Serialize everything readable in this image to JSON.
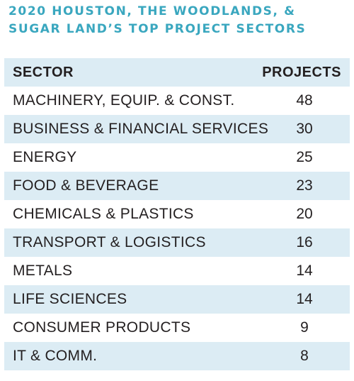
{
  "title_line1": "2020 HOUSTON, THE WOODLANDS, &",
  "title_line2": "SUGAR LAND’S TOP PROJECT SECTORS",
  "colors": {
    "title": "#3aa7bf",
    "row_shade": "#dcecf4",
    "text": "#231f20"
  },
  "chart_data": {
    "type": "table",
    "title": "2020 HOUSTON, THE WOODLANDS, & SUGAR LAND’S TOP PROJECT SECTORS",
    "columns": [
      "SECTOR",
      "PROJECTS"
    ],
    "rows": [
      {
        "sector": "MACHINERY, EQUIP. & CONST.",
        "projects": 48
      },
      {
        "sector": "BUSINESS & FINANCIAL SERVICES",
        "projects": 30
      },
      {
        "sector": "ENERGY",
        "projects": 25
      },
      {
        "sector": "FOOD & BEVERAGE",
        "projects": 23
      },
      {
        "sector": "CHEMICALS & PLASTICS",
        "projects": 20
      },
      {
        "sector": "TRANSPORT & LOGISTICS",
        "projects": 16
      },
      {
        "sector": "METALS",
        "projects": 14
      },
      {
        "sector": "LIFE SCIENCES",
        "projects": 14
      },
      {
        "sector": "CONSUMER PRODUCTS",
        "projects": 9
      },
      {
        "sector": "IT & COMM.",
        "projects": 8
      }
    ]
  }
}
